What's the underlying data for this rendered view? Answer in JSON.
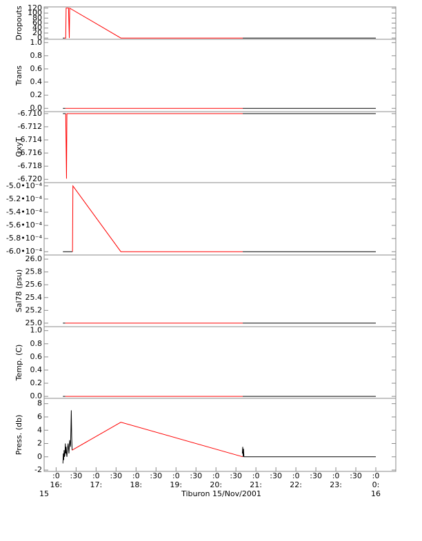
{
  "chart_data": [
    {
      "type": "line",
      "ylabel": "Dropouts",
      "xlim": [
        15.7,
        24.5
      ],
      "ylim": [
        -5,
        125
      ],
      "yticks": [
        0,
        20,
        40,
        60,
        80,
        100,
        120
      ],
      "series": [
        {
          "color": "#000000",
          "x": [
            16.17,
            16.21,
            16.21,
            20.67,
            24.0
          ],
          "values": [
            0,
            0,
            null,
            0,
            0
          ]
        },
        {
          "color": "#ff0000",
          "x": [
            16.21,
            16.24,
            16.25,
            16.31,
            16.33,
            16.34,
            17.62,
            20.67
          ],
          "values": [
            0,
            0,
            120,
            120,
            0,
            120,
            0,
            0
          ]
        }
      ]
    },
    {
      "type": "line",
      "ylabel": "Trans",
      "xlim": [
        15.7,
        24.5
      ],
      "ylim": [
        -0.05,
        1.05
      ],
      "yticks": [
        {
          "value": 0,
          "label": "0.0"
        },
        0.2,
        0.4,
        0.6,
        0.8,
        {
          "value": 1,
          "label": "1.0"
        }
      ],
      "series": [
        {
          "color": "#000000",
          "x": [
            16.17,
            16.23,
            16.23,
            20.67,
            24.0
          ],
          "values": [
            0,
            0,
            null,
            0,
            0
          ]
        },
        {
          "color": "#ff0000",
          "x": [
            16.23,
            17.62,
            20.67
          ],
          "values": [
            0,
            0,
            0
          ]
        }
      ]
    },
    {
      "type": "line",
      "ylabel": "OxyT",
      "xlim": [
        15.7,
        24.5
      ],
      "ylim": [
        -6.7205,
        -6.7097
      ],
      "yticks": [
        {
          "value": -6.71,
          "label": "-6.710"
        },
        -6.712,
        -6.714,
        -6.716,
        -6.718,
        {
          "value": -6.72,
          "label": "-6.720"
        }
      ],
      "series": [
        {
          "color": "#000000",
          "x": [
            16.17,
            16.24,
            16.24,
            20.67,
            24.0
          ],
          "values": [
            -6.71,
            -6.71,
            null,
            -6.71,
            -6.71
          ]
        },
        {
          "color": "#ff0000",
          "x": [
            16.24,
            16.26,
            16.27,
            17.62,
            20.67
          ],
          "values": [
            -6.71,
            -6.7199,
            -6.71,
            -6.71,
            -6.71
          ]
        }
      ]
    },
    {
      "type": "line",
      "xlim": [
        15.7,
        24.5
      ],
      "ylim": [
        -0.000605,
        -0.000495
      ],
      "yticks": [
        {
          "value": -0.0005,
          "label": "-5.0•10⁻⁴"
        },
        {
          "value": -0.00052,
          "label": "-5.2•10⁻⁴"
        },
        {
          "value": -0.00054,
          "label": "-5.4•10⁻⁴"
        },
        {
          "value": -0.00056,
          "label": "-5.6•10⁻⁴"
        },
        {
          "value": -0.00058,
          "label": "-5.8•10⁻⁴"
        },
        {
          "value": -0.0006,
          "label": "-6.0•10⁻⁴"
        }
      ],
      "series": [
        {
          "color": "#000000",
          "x": [
            16.17,
            16.41,
            16.41,
            20.67,
            24.0
          ],
          "values": [
            -0.0006,
            -0.0006,
            null,
            -0.0006,
            -0.0006
          ]
        },
        {
          "color": "#ff0000",
          "x": [
            16.41,
            16.42,
            17.62,
            20.67
          ],
          "values": [
            -0.0006,
            -0.0005,
            -0.0006,
            -0.0006
          ]
        }
      ]
    },
    {
      "type": "line",
      "ylabel": "Sal78 (psu)",
      "xlim": [
        15.7,
        24.5
      ],
      "ylim": [
        24.945,
        26.065
      ],
      "yticks": [
        {
          "value": 25,
          "label": "25.0"
        },
        25.2,
        25.4,
        25.6,
        25.8,
        {
          "value": 26,
          "label": "26.0"
        }
      ],
      "series": [
        {
          "color": "#000000",
          "x": [
            16.17,
            16.23,
            16.23,
            20.67,
            24.0
          ],
          "values": [
            25,
            25,
            null,
            25,
            25
          ]
        },
        {
          "color": "#ff0000",
          "x": [
            16.23,
            17.62,
            20.67
          ],
          "values": [
            25,
            25,
            25
          ]
        }
      ]
    },
    {
      "type": "line",
      "ylabel": "Temp. (C)",
      "xlim": [
        15.7,
        24.5
      ],
      "ylim": [
        -0.03,
        1.06
      ],
      "yticks": [
        {
          "value": 0,
          "label": "0.0"
        },
        0.2,
        0.4,
        0.6,
        0.8,
        {
          "value": 1,
          "label": "1.0"
        }
      ],
      "series": [
        {
          "color": "#000000",
          "x": [
            16.17,
            16.23,
            16.23,
            20.67,
            24.0
          ],
          "values": [
            0,
            0,
            null,
            0,
            0
          ]
        },
        {
          "color": "#ff0000",
          "x": [
            16.23,
            17.62,
            20.67
          ],
          "values": [
            0,
            0,
            0
          ]
        }
      ]
    },
    {
      "type": "line",
      "ylabel": "Press. (db)",
      "xlabel": "Tiburon 15/Nov/2001",
      "xlim": [
        15.7,
        24.5
      ],
      "ylim": [
        -2.2,
        8.8
      ],
      "yticks": [
        -2,
        0,
        2,
        4,
        6,
        8
      ],
      "xticks": [
        {
          "value": 16,
          "label": ":0"
        },
        {
          "value": 16.5,
          "label": ":30"
        },
        {
          "value": 17,
          "label": ":0"
        },
        {
          "value": 17.5,
          "label": ":30"
        },
        {
          "value": 18,
          "label": ":0"
        },
        {
          "value": 18.5,
          "label": ":30"
        },
        {
          "value": 19,
          "label": ":0"
        },
        {
          "value": 19.5,
          "label": ":30"
        },
        {
          "value": 20,
          "label": ":0"
        },
        {
          "value": 20.5,
          "label": ":30"
        },
        {
          "value": 21,
          "label": ":0"
        },
        {
          "value": 21.5,
          "label": ":30"
        },
        {
          "value": 22,
          "label": ":0"
        },
        {
          "value": 22.5,
          "label": ":30"
        },
        {
          "value": 23,
          "label": ":0"
        },
        {
          "value": 23.5,
          "label": ":30"
        },
        {
          "value": 24,
          "label": ":0"
        }
      ],
      "hour_labels": [
        {
          "value": 16,
          "label": "16:"
        },
        {
          "value": 17,
          "label": "17:"
        },
        {
          "value": 18,
          "label": "18:"
        },
        {
          "value": 19,
          "label": "19:"
        },
        {
          "value": 20,
          "label": "20:"
        },
        {
          "value": 21,
          "label": "21:"
        },
        {
          "value": 22,
          "label": "22:"
        },
        {
          "value": 23,
          "label": "23:"
        },
        {
          "value": 24,
          "label": "0:"
        }
      ],
      "day_labels": [
        {
          "value": 15.7,
          "label": "15"
        },
        {
          "value": 24,
          "label": "16"
        }
      ],
      "series": [
        {
          "color": "#000000",
          "x": [
            16.17,
            16.18,
            16.19,
            16.2,
            16.21,
            16.22,
            16.23,
            16.24,
            16.25,
            16.26,
            16.27,
            16.28,
            16.3,
            16.32,
            16.34,
            16.36,
            16.37,
            16.38,
            16.39,
            16.4,
            16.4,
            20.66,
            20.67,
            20.68,
            20.69,
            20.7,
            24.0
          ],
          "values": [
            -1,
            0.5,
            -0.5,
            1,
            0,
            0.3,
            2,
            0.5,
            1.5,
            0.5,
            0,
            1,
            2,
            0.5,
            2.5,
            1.5,
            4,
            7,
            3,
            1,
            null,
            0.5,
            1.5,
            0,
            1.2,
            0,
            0
          ]
        },
        {
          "color": "#ff0000",
          "x": [
            16.4,
            17.62,
            20.67
          ],
          "values": [
            1,
            5.2,
            0
          ]
        }
      ]
    }
  ]
}
